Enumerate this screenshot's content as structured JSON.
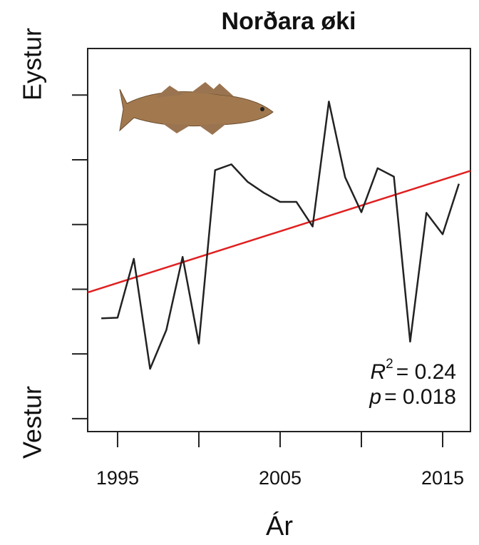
{
  "chart_data": {
    "type": "line",
    "title": "Norðara øki",
    "xlabel": "Ár",
    "ylabel_top": "Eystur",
    "ylabel_bottom": "Vestur",
    "x": [
      1994,
      1995,
      1996,
      1997,
      1998,
      1999,
      2000,
      2001,
      2002,
      2003,
      2004,
      2005,
      2006,
      2007,
      2008,
      2009,
      2010,
      2011,
      2012,
      2013,
      2014,
      2015,
      2016
    ],
    "series": [
      {
        "color": "#222222",
        "values": [
          1.55,
          1.56,
          2.47,
          0.77,
          1.37,
          2.5,
          1.16,
          3.84,
          3.93,
          3.66,
          3.49,
          3.35,
          3.35,
          2.97,
          4.9,
          3.73,
          3.19,
          3.87,
          3.74,
          1.19,
          3.18,
          2.85,
          3.63
        ]
      }
    ],
    "trend": {
      "color": "#e02020",
      "x": [
        1993.16,
        2016.71
      ],
      "y": [
        1.95,
        3.83
      ]
    },
    "xlim": [
      1993.16,
      2016.71
    ],
    "xticks": [
      1995,
      2005,
      2015
    ],
    "xminor_ticks": [
      2000,
      2010
    ],
    "ylim": [
      -0.2,
      5.72
    ],
    "yticks": [
      0,
      1,
      2,
      3,
      4,
      5
    ],
    "annotations": [
      "R",
      "2",
      "= 0.24",
      "p",
      "= 0.018"
    ]
  }
}
